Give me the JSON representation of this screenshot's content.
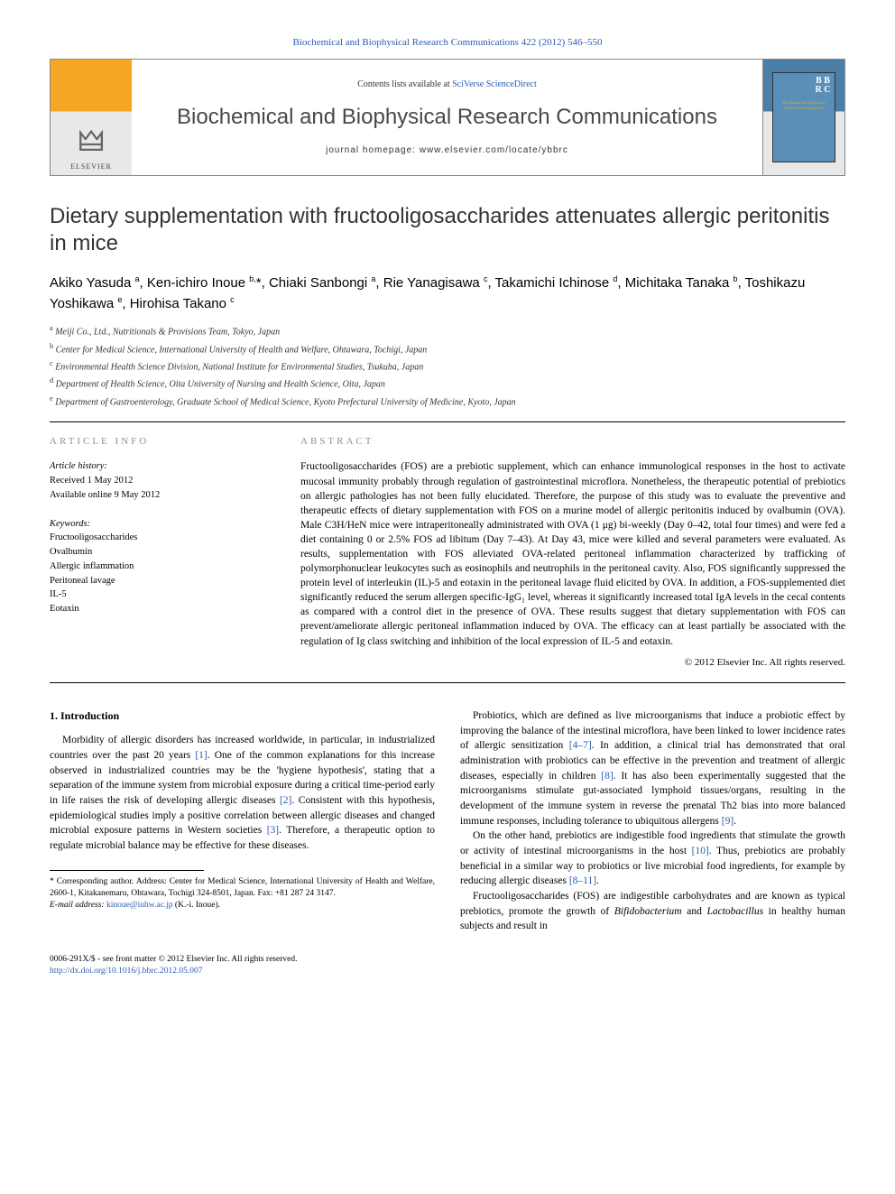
{
  "header_citation": "Biochemical and Biophysical Research Communications 422 (2012) 546–550",
  "banner": {
    "contents_prefix": "Contents lists available at ",
    "contents_link": "SciVerse ScienceDirect",
    "journal_name": "Biochemical and Biophysical Research Communications",
    "homepage_prefix": "journal homepage: ",
    "homepage_url": "www.elsevier.com/locate/ybbrc",
    "elsevier_label": "ELSEVIER",
    "bbrc_label": "B B R C",
    "cover_text": "Biochemical and Biophysical Research Communications"
  },
  "title": "Dietary supplementation with fructooligosaccharides attenuates allergic peritonitis in mice",
  "authors_html": "Akiko Yasuda <sup>a</sup>, Ken-ichiro Inoue <sup>b,</sup>*, Chiaki Sanbongi <sup>a</sup>, Rie Yanagisawa <sup>c</sup>, Takamichi Ichinose <sup>d</sup>, Michitaka Tanaka <sup>b</sup>, Toshikazu Yoshikawa <sup>e</sup>, Hirohisa Takano <sup>c</sup>",
  "affiliations": [
    {
      "sup": "a",
      "text": "Meiji Co., Ltd., Nutritionals & Provisions Team, Tokyo, Japan"
    },
    {
      "sup": "b",
      "text": "Center for Medical Science, International University of Health and Welfare, Ohtawara, Tochigi, Japan"
    },
    {
      "sup": "c",
      "text": "Environmental Health Science Division, National Institute for Environmental Studies, Tsukuba, Japan"
    },
    {
      "sup": "d",
      "text": "Department of Health Science, Oita University of Nursing and Health Science, Oita, Japan"
    },
    {
      "sup": "e",
      "text": "Department of Gastroenterology, Graduate School of Medical Science, Kyoto Prefectural University of Medicine, Kyoto, Japan"
    }
  ],
  "article_info": {
    "heading": "article info",
    "history_label": "Article history:",
    "received": "Received 1 May 2012",
    "online": "Available online 9 May 2012",
    "keywords_label": "Keywords:",
    "keywords": [
      "Fructooligosaccharides",
      "Ovalbumin",
      "Allergic inflammation",
      "Peritoneal lavage",
      "IL-5",
      "Eotaxin"
    ]
  },
  "abstract": {
    "heading": "abstract",
    "text": "Fructooligosaccharides (FOS) are a prebiotic supplement, which can enhance immunological responses in the host to activate mucosal immunity probably through regulation of gastrointestinal microflora. Nonetheless, the therapeutic potential of prebiotics on allergic pathologies has not been fully elucidated. Therefore, the purpose of this study was to evaluate the preventive and therapeutic effects of dietary supplementation with FOS on a murine model of allergic peritonitis induced by ovalbumin (OVA). Male C3H/HeN mice were intraperitoneally administrated with OVA (1 μg) bi-weekly (Day 0–42, total four times) and were fed a diet containing 0 or 2.5% FOS ad libitum (Day 7–43). At Day 43, mice were killed and several parameters were evaluated. As results, supplementation with FOS alleviated OVA-related peritoneal inflammation characterized by trafficking of polymorphonuclear leukocytes such as eosinophils and neutrophils in the peritoneal cavity. Also, FOS significantly suppressed the protein level of interleukin (IL)-5 and eotaxin in the peritoneal lavage fluid elicited by OVA. In addition, a FOS-supplemented diet significantly reduced the serum allergen specific-IgG₁ level, whereas it significantly increased total IgA levels in the cecal contents as compared with a control diet in the presence of OVA. These results suggest that dietary supplementation with FOS can prevent/ameliorate allergic peritoneal inflammation induced by OVA. The efficacy can at least partially be associated with the regulation of Ig class switching and inhibition of the local expression of IL-5 and eotaxin.",
    "copyright": "© 2012 Elsevier Inc. All rights reserved."
  },
  "body": {
    "intro_heading": "1. Introduction",
    "left_paragraphs": [
      "Morbidity of allergic disorders has increased worldwide, in particular, in industrialized countries over the past 20 years [1]. One of the common explanations for this increase observed in industrialized countries may be the 'hygiene hypothesis', stating that a separation of the immune system from microbial exposure during a critical time-period early in life raises the risk of developing allergic diseases [2]. Consistent with this hypothesis, epidemiological studies imply a positive correlation between allergic diseases and changed microbial exposure patterns in Western societies [3]. Therefore, a therapeutic option to regulate microbial balance may be effective for these diseases."
    ],
    "right_paragraphs": [
      "Probiotics, which are defined as live microorganisms that induce a probiotic effect by improving the balance of the intestinal microflora, have been linked to lower incidence rates of allergic sensitization [4–7]. In addition, a clinical trial has demonstrated that oral administration with probiotics can be effective in the prevention and treatment of allergic diseases, especially in children [8]. It has also been experimentally suggested that the microorganisms stimulate gut-associated lymphoid tissues/organs, resulting in the development of the immune system in reverse the prenatal Th2 bias into more balanced immune responses, including tolerance to ubiquitous allergens [9].",
      "On the other hand, prebiotics are indigestible food ingredients that stimulate the growth or activity of intestinal microorganisms in the host [10]. Thus, prebiotics are probably beneficial in a similar way to probiotics or live microbial food ingredients, for example by reducing allergic diseases [8–11].",
      "Fructooligosaccharides (FOS) are indigestible carbohydrates and are known as typical prebiotics, promote the growth of Bifidobacterium and Lactobacillus in healthy human subjects and result in"
    ]
  },
  "footnote": {
    "corr": "* Corresponding author. Address: Center for Medical Science, International University of Health and Welfare, 2600-1, Kitakanemaru, Ohtawara, Tochigi 324-8501, Japan. Fax: +81 287 24 3147.",
    "email_label": "E-mail address: ",
    "email": "kinoue@iuhw.ac.jp",
    "email_author": " (K.-i. Inoue)."
  },
  "footer": {
    "left_line1": "0006-291X/$ - see front matter © 2012 Elsevier Inc. All rights reserved.",
    "left_line2": "http://dx.doi.org/10.1016/j.bbrc.2012.05.007"
  }
}
